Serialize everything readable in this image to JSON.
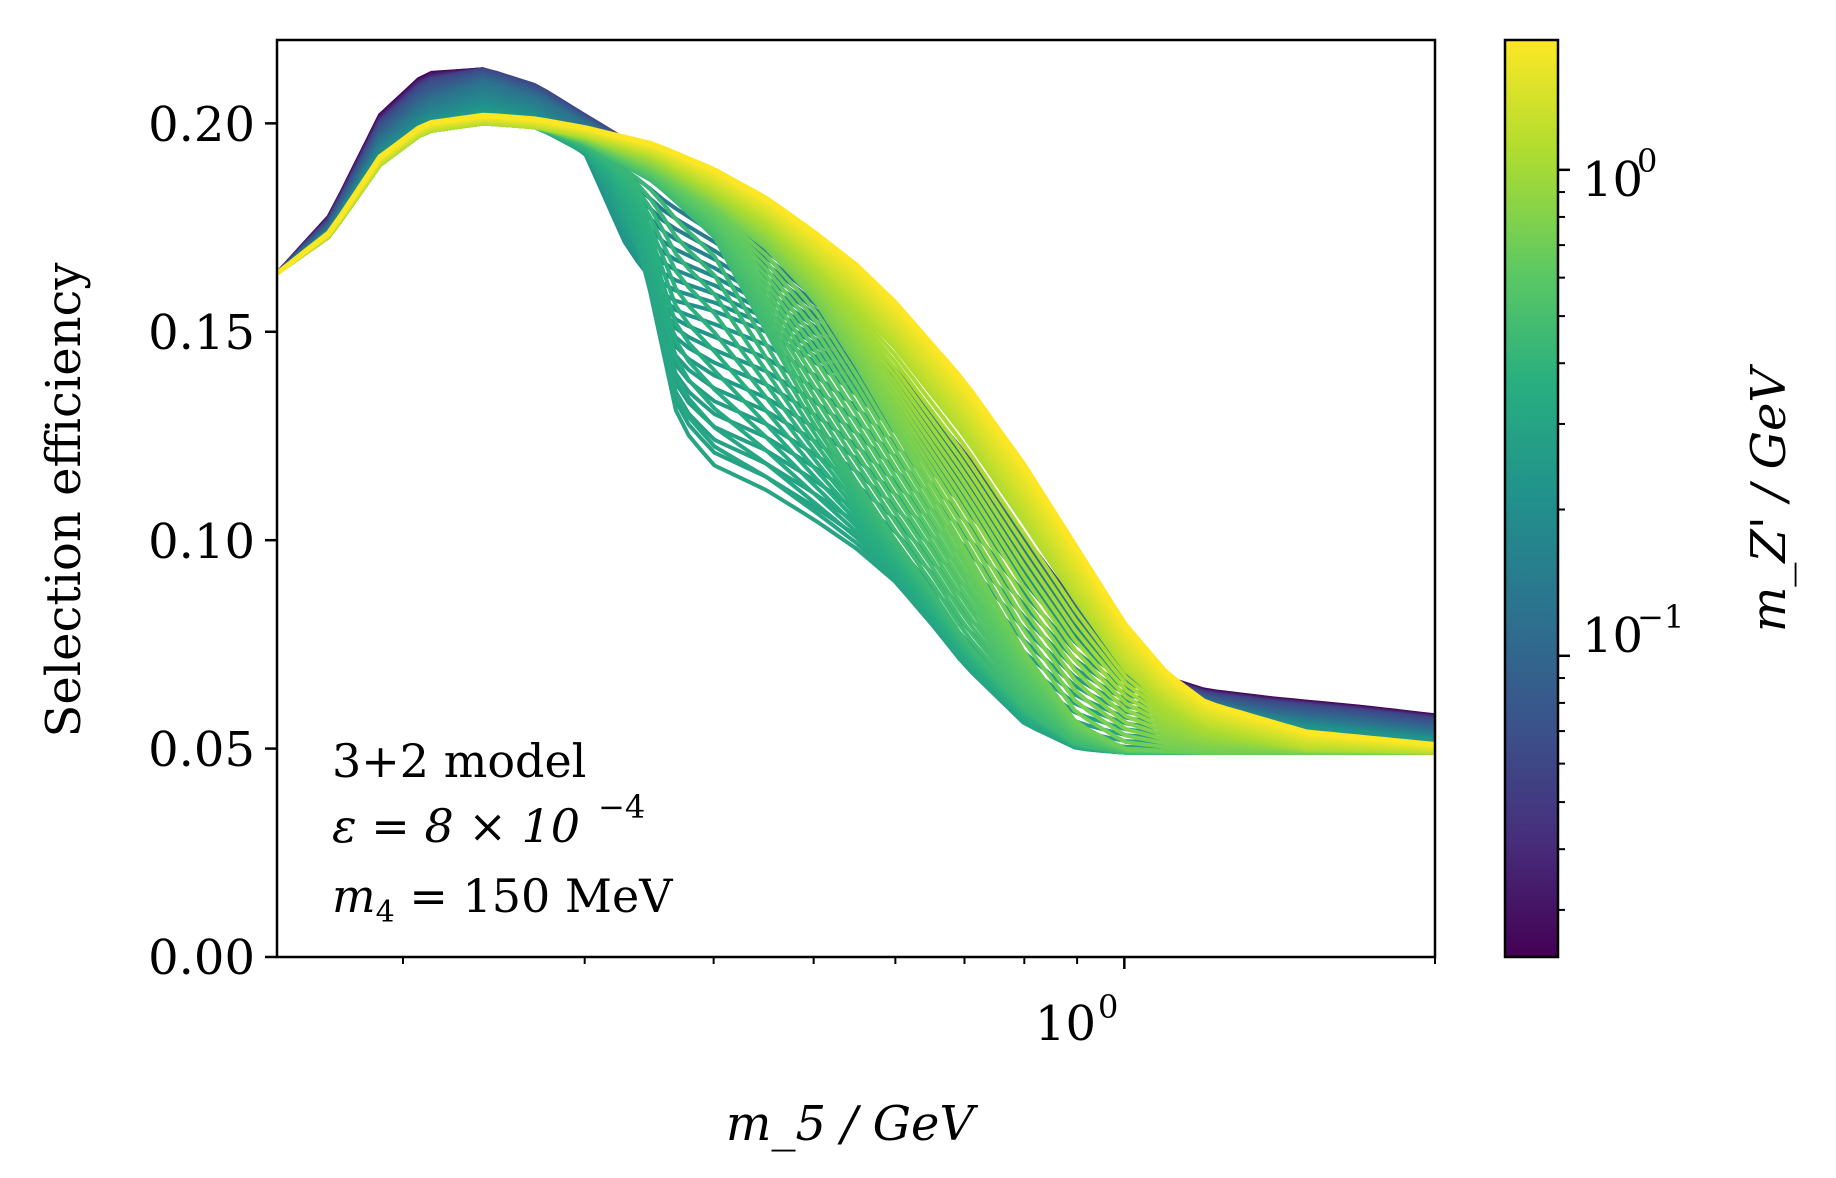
{
  "chart_data": {
    "type": "line",
    "title": "",
    "xlabel": "m_5 / GeV",
    "ylabel": "Selection efficiency",
    "xscale": "log",
    "xlim": [
      0.151,
      2.0
    ],
    "ylim": [
      0.0,
      0.22
    ],
    "x_ticks": [
      {
        "value": 1.0,
        "label": "10",
        "exp": "0"
      }
    ],
    "y_ticks": [
      {
        "value": 0.0,
        "label": "0.00"
      },
      {
        "value": 0.05,
        "label": "0.05"
      },
      {
        "value": 0.1,
        "label": "0.10"
      },
      {
        "value": 0.15,
        "label": "0.15"
      },
      {
        "value": 0.2,
        "label": "0.20"
      }
    ],
    "colorbar": {
      "label": "m_Z' / GeV",
      "scale": "log",
      "colormap": "viridis",
      "range": [
        0.024,
        1.85
      ],
      "ticks": [
        {
          "value": 0.1,
          "label": "10",
          "exp": "−1"
        },
        {
          "value": 1.0,
          "label": "10",
          "exp": "0"
        }
      ],
      "stops": [
        "#440154",
        "#472d7b",
        "#3b528b",
        "#2c728e",
        "#21918c",
        "#28ae80",
        "#5ec962",
        "#addc30",
        "#fde725"
      ]
    },
    "annotation": {
      "line1": "3+2 model",
      "line2_lhs": "ε = 8 × 10",
      "line2_exp": "−4",
      "line3_sym": "m",
      "line3_sub": "4",
      "line3_rhs": " = 150 MeV"
    },
    "series": [
      {
        "name": "m_Z' = 0.025 GeV",
        "mz": 0.025,
        "x": [
          0.151,
          0.17,
          0.19,
          0.21,
          0.24,
          0.27,
          0.3,
          0.35,
          0.4,
          0.5,
          0.6,
          0.7,
          0.8,
          0.9,
          1.0,
          1.1,
          1.2,
          1.4,
          1.7,
          2.0
        ],
        "y": [
          0.164,
          0.178,
          0.202,
          0.212,
          0.213,
          0.208,
          0.201,
          0.191,
          0.18,
          0.16,
          0.14,
          0.12,
          0.1,
          0.083,
          0.073,
          0.067,
          0.064,
          0.062,
          0.06,
          0.058
        ]
      },
      {
        "name": "m_Z' = 0.06 GeV",
        "mz": 0.06,
        "x": [
          0.151,
          0.17,
          0.19,
          0.21,
          0.24,
          0.27,
          0.3,
          0.35,
          0.4,
          0.5,
          0.6,
          0.7,
          0.8,
          0.9,
          1.0,
          1.1,
          1.2,
          1.4,
          1.7,
          2.0
        ],
        "y": [
          0.164,
          0.177,
          0.2,
          0.21,
          0.213,
          0.209,
          0.202,
          0.192,
          0.181,
          0.161,
          0.141,
          0.121,
          0.101,
          0.084,
          0.073,
          0.066,
          0.063,
          0.061,
          0.059,
          0.057
        ]
      },
      {
        "name": "m_Z' = 0.12 GeV",
        "mz": 0.12,
        "x": [
          0.151,
          0.17,
          0.19,
          0.21,
          0.24,
          0.27,
          0.3,
          0.35,
          0.4,
          0.5,
          0.6,
          0.7,
          0.8,
          0.9,
          1.0,
          1.1,
          1.2,
          1.4,
          1.7,
          2.0
        ],
        "y": [
          0.164,
          0.175,
          0.196,
          0.205,
          0.21,
          0.206,
          0.2,
          0.191,
          0.18,
          0.16,
          0.14,
          0.12,
          0.1,
          0.083,
          0.072,
          0.065,
          0.061,
          0.058,
          0.056,
          0.054
        ]
      },
      {
        "name": "m_Z' = 0.22 GeV",
        "mz": 0.22,
        "x": [
          0.151,
          0.17,
          0.19,
          0.21,
          0.24,
          0.27,
          0.3,
          0.33,
          0.36,
          0.4,
          0.45,
          0.5,
          0.55,
          0.6,
          0.7,
          0.8,
          0.9,
          1.0,
          1.2,
          1.5,
          2.0
        ],
        "y": [
          0.164,
          0.174,
          0.192,
          0.2,
          0.204,
          0.201,
          0.193,
          0.17,
          0.158,
          0.155,
          0.15,
          0.143,
          0.135,
          0.126,
          0.108,
          0.09,
          0.075,
          0.066,
          0.059,
          0.055,
          0.052
        ]
      },
      {
        "name": "m_Z' = 0.30 GeV",
        "mz": 0.3,
        "x": [
          0.151,
          0.17,
          0.19,
          0.21,
          0.24,
          0.27,
          0.3,
          0.32,
          0.34,
          0.37,
          0.4,
          0.45,
          0.5,
          0.55,
          0.6,
          0.65,
          0.7,
          0.8,
          0.9,
          1.0,
          1.2,
          1.5,
          2.0
        ],
        "y": [
          0.164,
          0.173,
          0.19,
          0.198,
          0.201,
          0.199,
          0.193,
          0.185,
          0.17,
          0.128,
          0.118,
          0.112,
          0.105,
          0.098,
          0.09,
          0.08,
          0.07,
          0.056,
          0.05,
          0.049,
          0.049,
          0.049,
          0.05
        ]
      },
      {
        "name": "m_Z' = 0.45 GeV",
        "mz": 0.45,
        "x": [
          0.151,
          0.17,
          0.19,
          0.21,
          0.24,
          0.27,
          0.3,
          0.35,
          0.4,
          0.45,
          0.5,
          0.55,
          0.6,
          0.65,
          0.7,
          0.8,
          0.9,
          1.0,
          1.2,
          1.5,
          2.0
        ],
        "y": [
          0.164,
          0.173,
          0.19,
          0.198,
          0.2,
          0.199,
          0.195,
          0.186,
          0.173,
          0.15,
          0.13,
          0.114,
          0.1,
          0.088,
          0.076,
          0.06,
          0.051,
          0.049,
          0.049,
          0.049,
          0.049
        ]
      },
      {
        "name": "m_Z' = 0.70 GeV",
        "mz": 0.7,
        "x": [
          0.151,
          0.17,
          0.19,
          0.21,
          0.24,
          0.27,
          0.3,
          0.35,
          0.4,
          0.45,
          0.5,
          0.55,
          0.6,
          0.7,
          0.8,
          0.9,
          1.0,
          1.2,
          1.5,
          2.0
        ],
        "y": [
          0.164,
          0.173,
          0.19,
          0.198,
          0.2,
          0.199,
          0.196,
          0.189,
          0.18,
          0.17,
          0.158,
          0.142,
          0.126,
          0.098,
          0.073,
          0.056,
          0.05,
          0.049,
          0.049,
          0.049
        ]
      },
      {
        "name": "m_Z' = 1.10 GeV",
        "mz": 1.1,
        "x": [
          0.151,
          0.17,
          0.19,
          0.21,
          0.24,
          0.27,
          0.3,
          0.35,
          0.4,
          0.45,
          0.5,
          0.55,
          0.6,
          0.7,
          0.8,
          0.9,
          1.0,
          1.1,
          1.2,
          1.5,
          2.0
        ],
        "y": [
          0.164,
          0.173,
          0.19,
          0.198,
          0.2,
          0.199,
          0.197,
          0.192,
          0.184,
          0.176,
          0.166,
          0.156,
          0.146,
          0.125,
          0.104,
          0.085,
          0.069,
          0.06,
          0.055,
          0.05,
          0.049
        ]
      },
      {
        "name": "m_Z' = 1.85 GeV",
        "mz": 1.85,
        "x": [
          0.151,
          0.17,
          0.19,
          0.21,
          0.24,
          0.27,
          0.3,
          0.35,
          0.4,
          0.45,
          0.5,
          0.55,
          0.6,
          0.7,
          0.8,
          0.9,
          1.0,
          1.1,
          1.2,
          1.5,
          2.0
        ],
        "y": [
          0.164,
          0.174,
          0.192,
          0.2,
          0.202,
          0.201,
          0.199,
          0.195,
          0.189,
          0.182,
          0.174,
          0.166,
          0.157,
          0.138,
          0.118,
          0.098,
          0.08,
          0.068,
          0.061,
          0.054,
          0.051
        ]
      }
    ]
  }
}
